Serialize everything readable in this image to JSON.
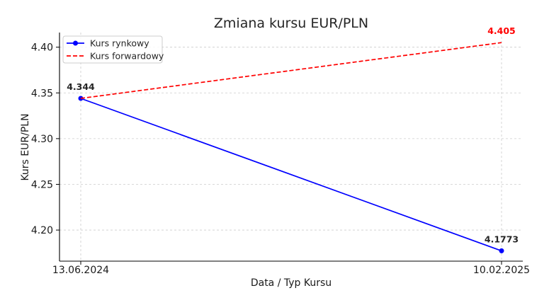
{
  "chart_data": {
    "type": "line",
    "title": "Zmiana kursu EUR/PLN",
    "xlabel": "Data / Typ Kursu",
    "ylabel": "Kurs EUR/PLN",
    "categories": [
      "13.06.2024",
      "10.02.2025"
    ],
    "ylim": [
      4.166,
      4.416
    ],
    "yticks": [
      "4.20",
      "4.25",
      "4.30",
      "4.35",
      "4.40"
    ],
    "grid": true,
    "legend_position": "top-left",
    "series": [
      {
        "name": "Kurs rynkowy",
        "values": [
          4.344,
          4.1773
        ],
        "labels": [
          "4.344",
          "4.1773"
        ],
        "color": "#0000ff",
        "style": "solid",
        "marker": "circle"
      },
      {
        "name": "Kurs forwardowy",
        "values": [
          4.344,
          4.405
        ],
        "labels": [
          "",
          "4.405"
        ],
        "color": "#ff0000",
        "style": "dashed",
        "marker": "none"
      }
    ],
    "label_color": "#262626"
  }
}
